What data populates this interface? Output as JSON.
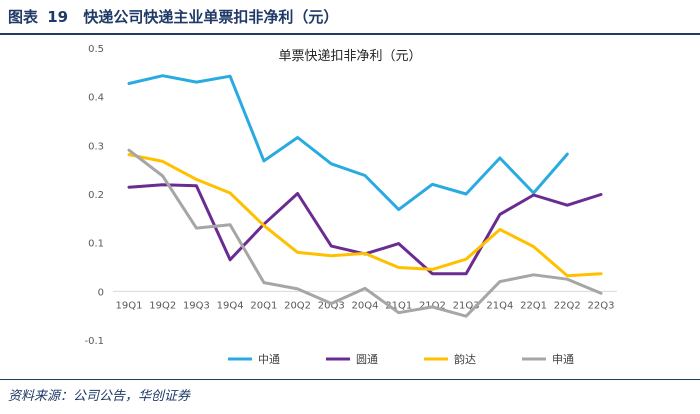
{
  "figure": {
    "label": "图表",
    "number": "19",
    "caption": "快递公司快递主业单票扣非净利（元）"
  },
  "source_note": "资料来源：公司公告，华创证券",
  "chart_data": {
    "type": "line",
    "title": "单票快递扣非净利（元）",
    "xlabel": "",
    "ylabel": "",
    "ylim": [
      -0.1,
      0.5
    ],
    "yticks": [
      "0.5",
      "0.4",
      "0.3",
      "0.2",
      "0.1",
      "0",
      "-0.1"
    ],
    "ytick_values": [
      0.5,
      0.4,
      0.3,
      0.2,
      0.1,
      0,
      -0.1
    ],
    "categories": [
      "19Q1",
      "19Q2",
      "19Q3",
      "19Q4",
      "20Q1",
      "20Q2",
      "20Q3",
      "20Q4",
      "21Q1",
      "21Q2",
      "21Q3",
      "21Q4",
      "22Q1",
      "22Q2",
      "22Q3"
    ],
    "legend_position": "bottom",
    "grid": false,
    "series": [
      {
        "name": "中通",
        "color": "#29abe2",
        "values": [
          0.427,
          0.443,
          0.43,
          0.442,
          0.268,
          0.316,
          0.262,
          0.238,
          0.168,
          0.22,
          0.2,
          0.274,
          0.202,
          0.282,
          null
        ]
      },
      {
        "name": "圆通",
        "color": "#6a2c91",
        "values": [
          0.214,
          0.219,
          0.217,
          0.065,
          0.138,
          0.201,
          0.093,
          0.077,
          0.098,
          0.036,
          0.036,
          0.158,
          0.198,
          0.177,
          0.199
        ]
      },
      {
        "name": "韵达",
        "color": "#ffc000",
        "values": [
          0.281,
          0.267,
          0.23,
          0.202,
          0.135,
          0.08,
          0.073,
          0.078,
          0.049,
          0.045,
          0.066,
          0.127,
          0.092,
          0.032,
          0.036
        ]
      },
      {
        "name": "申通",
        "color": "#a6a6a6",
        "values": [
          0.29,
          0.237,
          0.13,
          0.137,
          0.018,
          0.005,
          -0.025,
          0.006,
          -0.044,
          -0.032,
          -0.051,
          0.02,
          0.034,
          0.025,
          -0.004
        ]
      }
    ]
  }
}
